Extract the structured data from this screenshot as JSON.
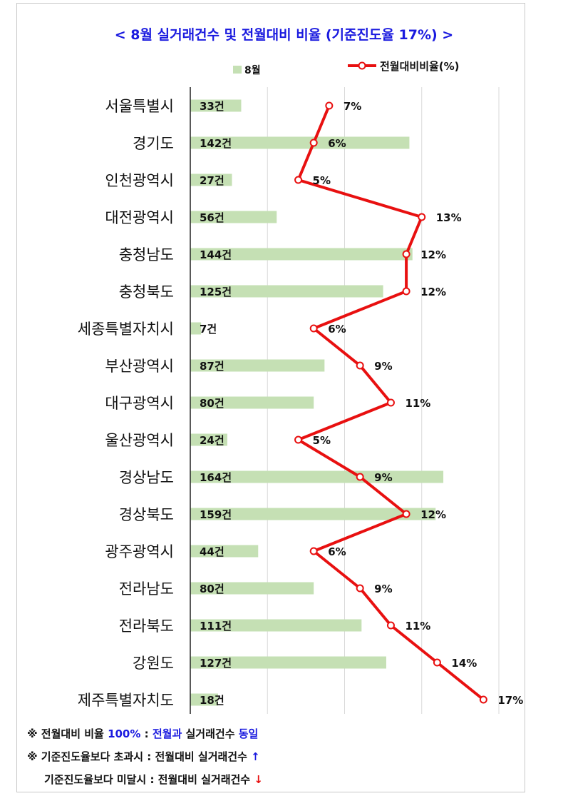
{
  "title": "< 8월 실거래건수 및 전월대비 비율 (기준진도율 17%) >",
  "chart_data": {
    "type": "bar",
    "orientation": "horizontal",
    "categories": [
      "서울특별시",
      "경기도",
      "인천광역시",
      "대전광역시",
      "충청남도",
      "충청북도",
      "세종특별자치시",
      "부산광역시",
      "대구광역시",
      "울산광역시",
      "경상남도",
      "경상북도",
      "광주광역시",
      "전라남도",
      "전라북도",
      "강원도",
      "제주특별자치도"
    ],
    "series": [
      {
        "name": "8월",
        "type": "bar",
        "color": "#c5e0b4",
        "values": [
          33,
          142,
          27,
          56,
          144,
          125,
          7,
          87,
          80,
          24,
          164,
          159,
          44,
          80,
          111,
          127,
          18
        ],
        "labels": [
          "33건",
          "142건",
          "27건",
          "56건",
          "144건",
          "125건",
          "7건",
          "87건",
          "80건",
          "24건",
          "164건",
          "159건",
          "44건",
          "80건",
          "111건",
          "127건",
          "18건"
        ]
      },
      {
        "name": "전월대비비율(%)",
        "type": "line",
        "color": "#e81010",
        "values": [
          7,
          6,
          5,
          13,
          12,
          12,
          6,
          9,
          11,
          5,
          9,
          12,
          6,
          9,
          11,
          14,
          17
        ],
        "labels": [
          "7%",
          "6%",
          "5%",
          "13%",
          "12%",
          "12%",
          "6%",
          "9%",
          "11%",
          "5%",
          "9%",
          "12%",
          "6%",
          "9%",
          "11%",
          "14%",
          "17%"
        ]
      }
    ],
    "bar_xlim": [
      0,
      200
    ],
    "line_xlim": [
      -2,
      18
    ],
    "grid": "vertical",
    "legend": "top"
  },
  "notes": {
    "n1_a": "※ 전월대비 비율 ",
    "n1_b": "100%",
    "n1_c": " : ",
    "n1_d": "전월과",
    "n1_e": " 실거래건수 ",
    "n1_f": "동일",
    "n2_a": "※ 기준진도율보다 초과시 : 전월대비 실거래건수 ",
    "n2_arrow": "↑",
    "n3_a": "기준진도율보다 미달시 : 전월대비 실거래건수 ",
    "n3_arrow": "↓"
  }
}
